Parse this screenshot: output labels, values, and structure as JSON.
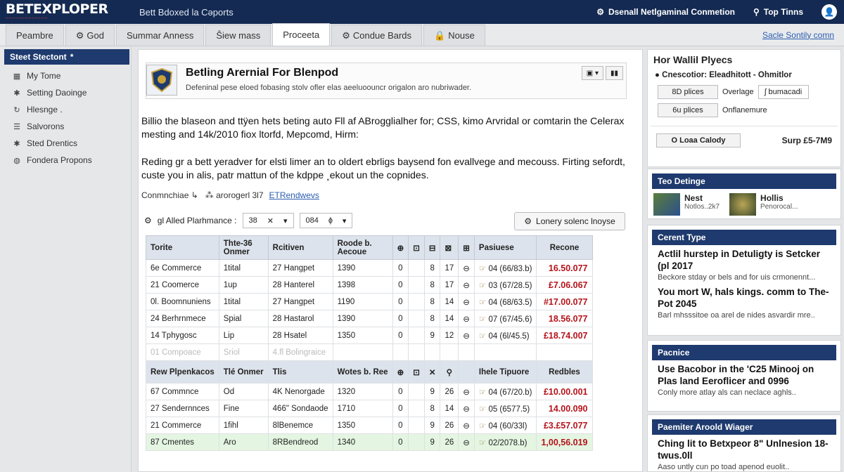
{
  "app": {
    "logo": "BETEXPLOPER",
    "logo_sub": "─────────────",
    "tagline": "Bett Bdoxed la Cəports",
    "status": "Dsenall Netlgaminal Conmetion",
    "top_tools": "Top Tinns"
  },
  "tabs": [
    {
      "label": "Peambre",
      "icon": ""
    },
    {
      "label": "God",
      "icon": "gear-icon"
    },
    {
      "label": "Summar Anness",
      "icon": ""
    },
    {
      "label": "Ŝiew mass",
      "icon": ""
    },
    {
      "label": "Proceeta",
      "icon": ""
    },
    {
      "label": "Condue Bards",
      "icon": "gear-icon"
    },
    {
      "label": "Nouse",
      "icon": "lock-icon"
    }
  ],
  "settings_link": "Sacle Sontily comn",
  "sidebar": {
    "header": "Steet Stectont",
    "items": [
      {
        "label": "My Tome",
        "icon": "grid-icon"
      },
      {
        "label": "Setting Daoinge",
        "icon": "star-icon"
      },
      {
        "label": "Hlesnge .",
        "icon": "refresh-icon"
      },
      {
        "label": "Salvorons",
        "icon": "list-icon"
      },
      {
        "label": "Sted Drentics",
        "icon": "star-icon"
      },
      {
        "label": "Fondera Propons",
        "icon": "globe-icon"
      }
    ]
  },
  "hero": {
    "title": "Betling Arernial For Blenpod",
    "subtitle": "Defeninal pese eloed fobasing stolv ofler elas aeeluoouncr origalon aro nubriwader."
  },
  "para1": "Billio the blaseon and ttÿen hets beting auto Fll af ABrogglialher for; CSS, kimo Arvridal or comtarin the Celerax mesting and 14k/2010 fiox ltorfd, Mepcomd, Hirm:",
  "para2": "Reding gr a bett yeradver for elsti limer an to oldert ebrligs baysend fon evallvege and mecouss. Firting sefordt, custe you in alis, patr mattun of the kdppe ˳ekout un the copnides.",
  "meta": {
    "label": "Conmnchiae ↳",
    "ref": "arorogerl 3l7",
    "link": "ETRendwevs"
  },
  "filters": {
    "label": "gl Alled Plarhmance :",
    "sel1": "38",
    "sel1_x": "✕",
    "sel2": "084",
    "sel2_x": "ɸ"
  },
  "recent_button": "Lonery solenc lnoyse",
  "table": {
    "headers": [
      "Torite",
      "Thte-36 Onmer",
      "Rcitiven",
      "Roode b. Aecoue",
      "⊕",
      "⊡",
      "⊟",
      "⊠",
      "⊞",
      "Pasiuese",
      "Recone"
    ],
    "rows": [
      [
        "6e Commerce",
        "1tital",
        "27 Hangpet",
        "1390",
        "0",
        "8",
        "17",
        "⊖",
        "04 (66/83.b)",
        "16.50.077"
      ],
      [
        "21 Coomerce",
        "1up",
        "28 Hanterel",
        "1398",
        "0",
        "8",
        "17",
        "⊖",
        "03 (67/28.5)",
        "£7.06.067"
      ],
      [
        "0l. Boomnuniens",
        "1tital",
        "27 Hangpet",
        "1190",
        "0",
        "8",
        "14",
        "⊖",
        "04 (68/63.5)",
        "#17.00.077"
      ],
      [
        "24 Berhrnmece",
        "Spial",
        "28 Hastarol",
        "1390",
        "0",
        "8",
        "14",
        "⊖",
        "07 (67/45.6)",
        "18.56.077"
      ],
      [
        "14 Tphygosc",
        "Lip",
        "28 Hsatel",
        "1350",
        "0",
        "9",
        "12",
        "⊖",
        "04 (6l/45.5)",
        "£18.74.007"
      ]
    ],
    "faded_row": [
      "01 Compoace",
      "Sriol",
      "4.fl Bolingraice",
      "",
      "",
      "",
      "",
      "",
      "",
      ""
    ],
    "subheaders": [
      "Rew Plpenkacos",
      "Tlé Onmer",
      "Tlis",
      "Wotes b. Ree",
      "⊕",
      "⊡",
      "✕",
      "⚲",
      "Ihele Tipuore",
      "Redbles"
    ],
    "rows2": [
      [
        "67 Commnce",
        "Od",
        "4K Nenorgade",
        "1320",
        "0",
        "9",
        "26",
        "⊖",
        "04 (67/20.b)",
        "£10.00.001"
      ],
      [
        "27 Sendernnces",
        "Fine",
        "466\" Sondaode",
        "1710",
        "0",
        "8",
        "14",
        "⊖",
        "05 (6577.5)",
        "14.00.090"
      ],
      [
        "21 Commerce",
        "1fihl",
        "8lBenemce",
        "1350",
        "0",
        "9",
        "26",
        "⊖",
        "04 (60/33l)",
        "£3.£57.077"
      ],
      [
        "87 Cmentes",
        "Aro",
        "8RBendreod",
        "1340",
        "0",
        "9",
        "26",
        "⊖",
        "02/2078.b)",
        "1,00,56.019"
      ]
    ]
  },
  "right": {
    "title": "Hor Wallil Plyecs",
    "radio": "Cnescotior: Eleadhitott - Ohmitlor",
    "btn1": "8D plices",
    "btn1_note": "Overlage",
    "btn1_input": "ʃ bumacadi",
    "btn2": "6u plices",
    "btn2_note": "Onflanemure",
    "load_button": "O Loaa Calody",
    "load_value": "Surp £5-7M9",
    "section1": "Teo Detinge",
    "card1_title": "Nest",
    "card1_sub": "Notlos..2k7",
    "card2_title": "Hollis",
    "card2_sub": "Penorocal...",
    "section2": "Cerent Type",
    "story1_title": "Actlil hurstep in Detuligty is Setcker (pl 2017",
    "story1_desc": "Beckore stday or bels and for uis crmonennt...",
    "story2_title": "You mort W, hals kings. comm to The-Pot 2045",
    "story2_desc": "Barl mhsssitoe oa arel de nides asvardir mre..",
    "section3": "Pacnice",
    "story3_title": "Use Bacobor in the 'C25 Minooj on Plas land Eeroflicer and 0996",
    "story3_desc": "Conly more atlay als can neclace aghls..",
    "section4": "Paemiter Aroold Wiager",
    "story4_title": "Ching lit to Betxpeor 8\" Unlnesion 18-twus.0ll",
    "story4_desc": "Aaso untly cun po toad apenod euolit.."
  },
  "colors": {
    "nav": "#142a52",
    "section_bar": "#1e3a6e",
    "result_red": "#b5131b",
    "link": "#2a5db0"
  }
}
